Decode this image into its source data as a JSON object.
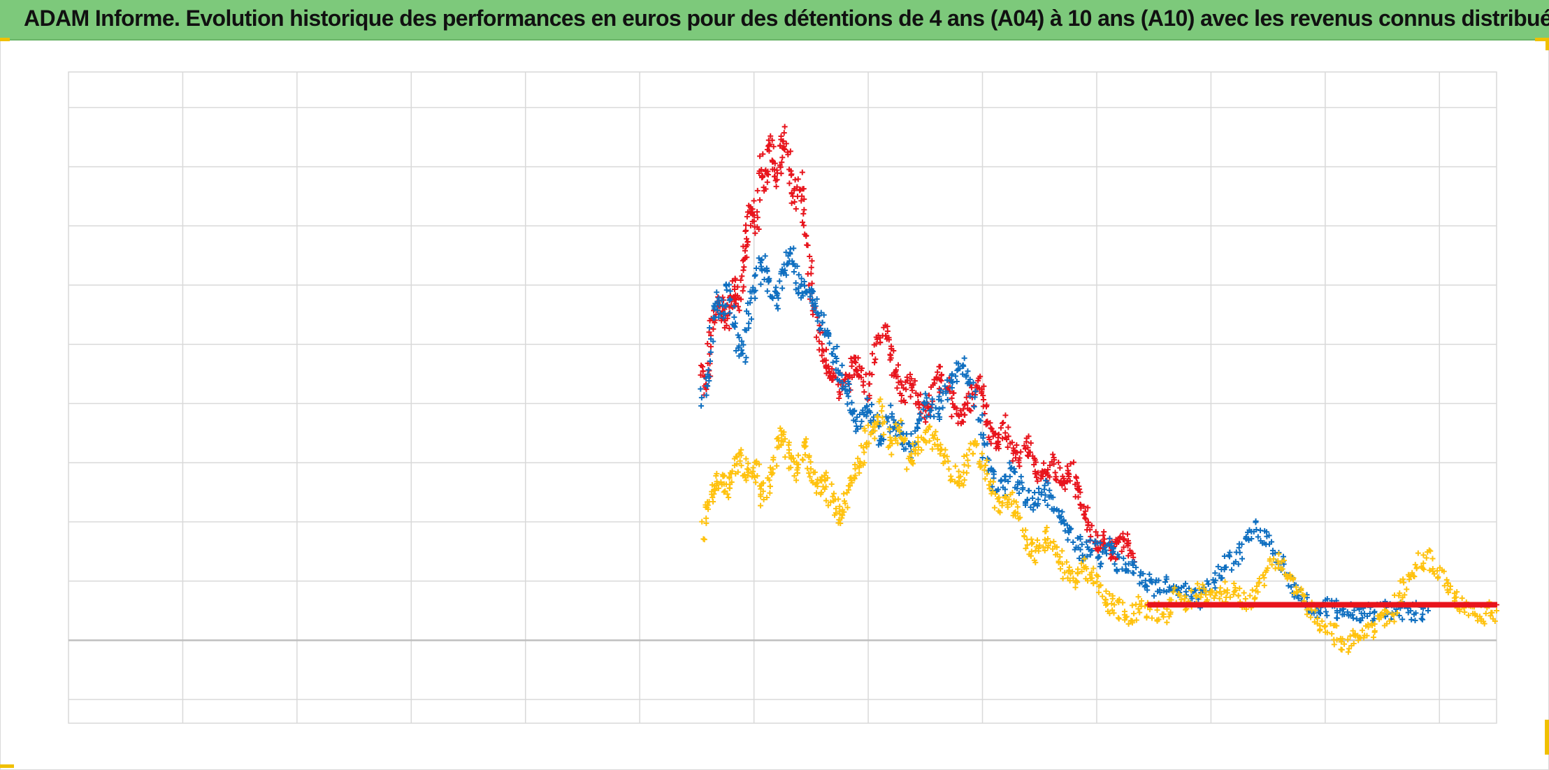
{
  "header": {
    "title": "ADAM Informe. Evolution historique des performances en euros pour des détentions de 4 ans (A04) à 10 ans (A10) avec les revenus connus distribués"
  },
  "colors": {
    "title_background": "#7dc97b",
    "corner_accent": "#f0c000",
    "grid": "#d9d9d9",
    "zero_line": "#bfbfbf"
  },
  "chart_data": {
    "type": "scatter",
    "marker": "plus",
    "title": "",
    "xlabel": "",
    "ylabel": "",
    "x_tick_labels_visible": false,
    "y_tick_labels_visible": false,
    "xlim": [
      0,
      12.5
    ],
    "ylim": [
      -1.4,
      9.6
    ],
    "x_grid_step": 1,
    "y_grid_step": 1,
    "zero_line_y": 0,
    "grid": true,
    "legend": "none",
    "series": [
      {
        "color": "#e8141c",
        "x": [
          5.55,
          5.58,
          5.63,
          5.68,
          5.72,
          5.76,
          5.8,
          5.84,
          5.87,
          5.91,
          5.94,
          5.98,
          6.02,
          6.07,
          6.1,
          6.14,
          6.18,
          6.22,
          6.26,
          6.3,
          6.35,
          6.4,
          6.45,
          6.5,
          6.55,
          6.6,
          6.64,
          6.7,
          6.76,
          6.82,
          6.88,
          6.93,
          7.0,
          7.08,
          7.15,
          7.2,
          7.25,
          7.32,
          7.38,
          7.45,
          7.52,
          7.58,
          7.65,
          7.72,
          7.78,
          7.85,
          7.9,
          7.96,
          8.02,
          8.08,
          8.12,
          8.18,
          8.25,
          8.32,
          8.4,
          8.47,
          8.54,
          8.6,
          8.67,
          8.73,
          8.78,
          8.85,
          8.9,
          8.96,
          9.02,
          9.08,
          9.14,
          9.2,
          9.26,
          9.32
        ],
        "y": [
          4.6,
          4.3,
          5.2,
          5.7,
          5.6,
          5.3,
          5.8,
          6.0,
          5.6,
          6.4,
          6.9,
          7.4,
          7.0,
          8.1,
          7.6,
          8.5,
          8.0,
          7.8,
          8.6,
          8.2,
          7.4,
          7.8,
          7.0,
          6.2,
          5.3,
          4.9,
          4.5,
          4.6,
          4.2,
          4.4,
          4.7,
          4.6,
          4.2,
          5.0,
          5.3,
          4.8,
          4.5,
          4.1,
          4.4,
          4.0,
          3.8,
          4.3,
          4.5,
          4.2,
          3.7,
          3.9,
          4.1,
          4.4,
          4.0,
          3.5,
          3.3,
          3.7,
          3.2,
          3.1,
          3.3,
          2.9,
          2.8,
          3.0,
          2.8,
          2.7,
          2.9,
          2.5,
          2.1,
          1.8,
          1.6,
          1.7,
          1.5,
          1.6,
          1.8,
          1.4
        ]
      },
      {
        "color": "#0f6fc0",
        "x": [
          5.55,
          5.6,
          5.66,
          5.72,
          5.78,
          5.84,
          5.9,
          5.96,
          6.02,
          6.08,
          6.14,
          6.2,
          6.26,
          6.32,
          6.38,
          6.44,
          6.5,
          6.56,
          6.62,
          6.68,
          6.74,
          6.8,
          6.86,
          6.92,
          6.98,
          7.05,
          7.12,
          7.2,
          7.28,
          7.36,
          7.44,
          7.52,
          7.6,
          7.68,
          7.76,
          7.84,
          7.92,
          8.0,
          8.08,
          8.16,
          8.24,
          8.32,
          8.4,
          8.48,
          8.56,
          8.64,
          8.72,
          8.8,
          8.88,
          8.96,
          9.04,
          9.12,
          9.2,
          9.3,
          9.4,
          9.5,
          9.6,
          9.7,
          9.8,
          9.9,
          10.0,
          10.1,
          10.2,
          10.3,
          10.4,
          10.5,
          10.6,
          10.7,
          10.8,
          10.9,
          11.0,
          11.1,
          11.2,
          11.3,
          11.4,
          11.5,
          11.6,
          11.7,
          11.8,
          11.9
        ],
        "y": [
          4.1,
          4.6,
          5.8,
          5.5,
          6.0,
          5.2,
          4.8,
          5.5,
          6.1,
          6.4,
          6.0,
          5.7,
          6.3,
          6.6,
          6.1,
          5.9,
          5.8,
          5.6,
          5.3,
          5.0,
          4.6,
          4.3,
          3.9,
          3.6,
          4.0,
          3.7,
          3.4,
          3.8,
          3.5,
          3.2,
          3.6,
          4.0,
          3.8,
          4.2,
          4.5,
          4.6,
          4.2,
          3.4,
          2.8,
          2.5,
          2.9,
          2.6,
          2.4,
          2.3,
          2.6,
          2.2,
          1.9,
          1.7,
          1.5,
          1.6,
          1.4,
          1.6,
          1.3,
          1.2,
          1.0,
          0.9,
          1.0,
          0.9,
          0.8,
          0.7,
          0.9,
          1.2,
          1.4,
          1.6,
          1.9,
          1.7,
          1.3,
          1.0,
          0.7,
          0.5,
          0.6,
          0.5,
          0.5,
          0.5,
          0.5,
          0.5,
          0.5,
          0.5,
          0.5,
          0.5
        ]
      },
      {
        "color": "#ffc20e",
        "x": [
          5.55,
          5.6,
          5.66,
          5.72,
          5.78,
          5.84,
          5.9,
          5.96,
          6.02,
          6.08,
          6.14,
          6.2,
          6.26,
          6.32,
          6.38,
          6.44,
          6.5,
          6.56,
          6.62,
          6.68,
          6.74,
          6.8,
          6.86,
          6.92,
          6.98,
          7.05,
          7.12,
          7.2,
          7.28,
          7.36,
          7.44,
          7.52,
          7.6,
          7.68,
          7.76,
          7.84,
          7.92,
          8.0,
          8.08,
          8.16,
          8.24,
          8.32,
          8.4,
          8.48,
          8.56,
          8.64,
          8.72,
          8.8,
          8.88,
          8.96,
          9.04,
          9.12,
          9.2,
          9.3,
          9.4,
          9.5,
          9.6,
          9.7,
          9.8,
          9.9,
          10.0,
          10.1,
          10.2,
          10.3,
          10.4,
          10.5,
          10.6,
          10.7,
          10.8,
          10.9,
          11.0,
          11.1,
          11.2,
          11.3,
          11.4,
          11.5,
          11.6,
          11.7,
          11.8,
          11.9,
          12.0,
          12.1,
          12.2,
          12.3,
          12.4,
          12.5
        ],
        "y": [
          1.8,
          2.4,
          2.6,
          2.8,
          2.5,
          2.9,
          3.1,
          2.7,
          2.9,
          2.4,
          2.7,
          3.2,
          3.5,
          3.0,
          2.8,
          3.3,
          2.9,
          2.6,
          2.7,
          2.4,
          2.1,
          2.3,
          2.8,
          3.0,
          3.4,
          3.6,
          3.9,
          3.2,
          3.6,
          3.0,
          3.3,
          3.5,
          3.3,
          3.1,
          2.7,
          2.8,
          3.3,
          3.0,
          2.6,
          2.2,
          2.4,
          2.1,
          1.6,
          1.4,
          1.8,
          1.5,
          1.2,
          1.0,
          1.3,
          1.1,
          0.8,
          0.6,
          0.5,
          0.4,
          0.6,
          0.5,
          0.4,
          0.8,
          0.6,
          0.9,
          0.7,
          0.8,
          0.9,
          0.6,
          0.9,
          1.2,
          1.3,
          1.0,
          0.7,
          0.5,
          0.2,
          0.1,
          -0.1,
          0.1,
          0.2,
          0.3,
          0.5,
          1.0,
          1.3,
          1.4,
          1.1,
          0.8,
          0.6,
          0.5,
          0.45,
          0.5
        ]
      },
      {
        "color": "#e8141c",
        "x": [
          9.45,
          9.55,
          9.65,
          9.75,
          9.85,
          9.95,
          10.05,
          10.15,
          10.25,
          10.35,
          10.45,
          10.55,
          10.65,
          10.75,
          10.85,
          10.95,
          11.05,
          11.15,
          11.25,
          11.35,
          11.45,
          11.55,
          11.65,
          11.75,
          11.85,
          11.95,
          12.05,
          12.15,
          12.25,
          12.35,
          12.45,
          12.5
        ],
        "y": [
          0.6,
          0.6,
          0.6,
          0.6,
          0.6,
          0.6,
          0.6,
          0.6,
          0.6,
          0.6,
          0.6,
          0.6,
          0.6,
          0.6,
          0.6,
          0.6,
          0.6,
          0.6,
          0.6,
          0.6,
          0.6,
          0.6,
          0.6,
          0.6,
          0.6,
          0.6,
          0.6,
          0.6,
          0.6,
          0.6,
          0.6,
          0.6
        ]
      }
    ]
  }
}
